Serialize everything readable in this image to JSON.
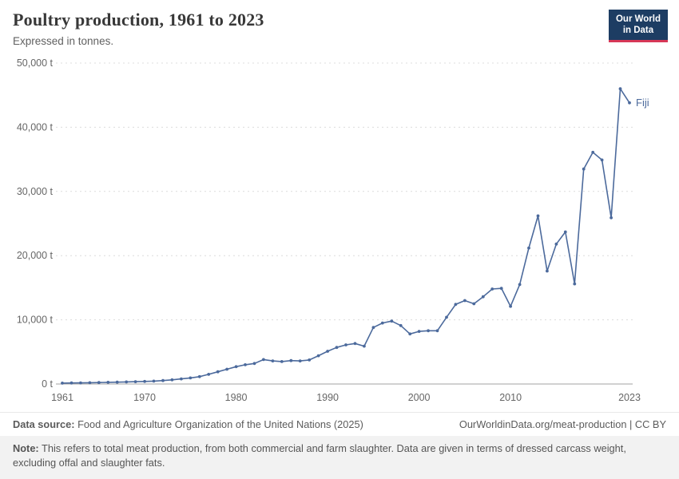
{
  "header": {
    "title": "Poultry production, 1961 to 2023",
    "subtitle": "Expressed in tonnes.",
    "logo": {
      "line1": "Our World",
      "line2": "in Data",
      "bg_color": "#1d3d63",
      "accent_color": "#d73757"
    }
  },
  "footer": {
    "source_label": "Data source:",
    "source_text": " Food and Agriculture Organization of the United Nations (2025)",
    "link_text": "OurWorldinData.org/meat-production | CC BY",
    "note_label": "Note:",
    "note_text": " This refers to total meat production, from both commercial and farm slaughter. Data are given in terms of dressed carcass weight, excluding offal and slaughter fats."
  },
  "chart_data": {
    "type": "line",
    "title": "Poultry production, 1961 to 2023",
    "subtitle": "Expressed in tonnes.",
    "xlabel": "",
    "ylabel": "",
    "grid": true,
    "ylim": [
      0,
      50000
    ],
    "xlim": [
      1961,
      2023
    ],
    "line_color": "#4c6a9c",
    "tick_color": "#666666",
    "y_ticks": [
      0,
      10000,
      20000,
      30000,
      40000,
      50000
    ],
    "y_tick_labels": [
      "0 t",
      "10,000 t",
      "20,000 t",
      "30,000 t",
      "40,000 t",
      "50,000 t"
    ],
    "x_ticks": [
      1961,
      1970,
      1980,
      1990,
      2000,
      2010,
      2023
    ],
    "x": [
      1961,
      1962,
      1963,
      1964,
      1965,
      1966,
      1967,
      1968,
      1969,
      1970,
      1971,
      1972,
      1973,
      1974,
      1975,
      1976,
      1977,
      1978,
      1979,
      1980,
      1981,
      1982,
      1983,
      1984,
      1985,
      1986,
      1987,
      1988,
      1989,
      1990,
      1991,
      1992,
      1993,
      1994,
      1995,
      1996,
      1997,
      1998,
      1999,
      2000,
      2001,
      2002,
      2003,
      2004,
      2005,
      2006,
      2007,
      2008,
      2009,
      2010,
      2011,
      2012,
      2013,
      2014,
      2015,
      2016,
      2017,
      2018,
      2019,
      2020,
      2021,
      2022,
      2023
    ],
    "series": [
      {
        "name": "Fiji",
        "values": [
          140,
          160,
          180,
          200,
          230,
          260,
          290,
          320,
          360,
          400,
          450,
          530,
          650,
          800,
          950,
          1150,
          1500,
          1900,
          2300,
          2700,
          3000,
          3200,
          3800,
          3600,
          3500,
          3650,
          3600,
          3750,
          4400,
          5100,
          5700,
          6100,
          6300,
          5900,
          8800,
          9500,
          9800,
          9100,
          7800,
          8200,
          8300,
          8300,
          10400,
          12400,
          13000,
          12500,
          13600,
          14800,
          14900,
          12100,
          15500,
          21200,
          26200,
          17600,
          21800,
          23700,
          15600,
          33500,
          36100,
          34900,
          25900,
          46000,
          43800
        ]
      }
    ]
  }
}
